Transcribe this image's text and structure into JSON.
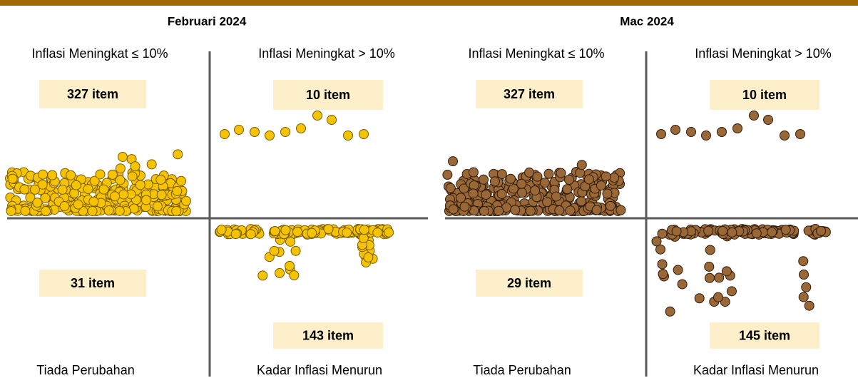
{
  "panels": [
    {
      "title": "Februari 2024",
      "color": "#f5c300",
      "stroke": "#7a5c00",
      "quadrants": [
        {
          "label": "Inflasi Meningkat ≤ 10%",
          "count": "327 item"
        },
        {
          "label": "Inflasi Meningkat > 10%",
          "count": "10 item"
        },
        {
          "label": "Tiada Perubahan",
          "count": "31 item"
        },
        {
          "label": "Kadar Inflasi Menurun",
          "count": "143 item"
        }
      ]
    },
    {
      "title": "Mac 2024",
      "color": "#9a6837",
      "stroke": "#2e1c0c",
      "quadrants": [
        {
          "label": "Inflasi Meningkat ≤ 10%",
          "count": "327 item"
        },
        {
          "label": "Inflasi Meningkat > 10%",
          "count": "10 item"
        },
        {
          "label": "Tiada Perubahan",
          "count": "29 item"
        },
        {
          "label": "Kadar Inflasi Menurun",
          "count": "145 item"
        }
      ]
    }
  ]
}
